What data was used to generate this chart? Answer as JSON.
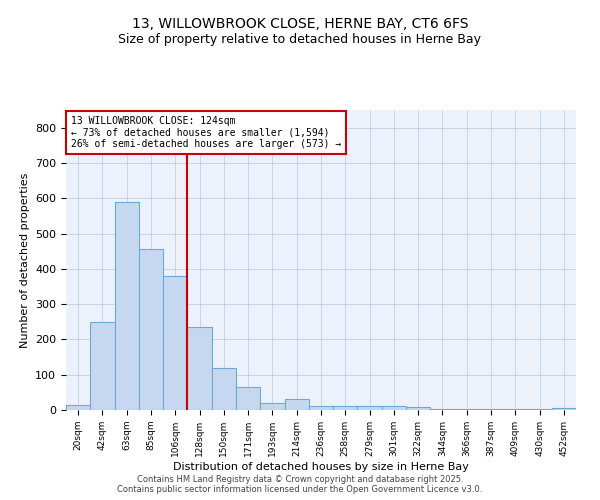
{
  "title1": "13, WILLOWBROOK CLOSE, HERNE BAY, CT6 6FS",
  "title2": "Size of property relative to detached houses in Herne Bay",
  "xlabel": "Distribution of detached houses by size in Herne Bay",
  "ylabel": "Number of detached properties",
  "categories": [
    "20sqm",
    "42sqm",
    "63sqm",
    "85sqm",
    "106sqm",
    "128sqm",
    "150sqm",
    "171sqm",
    "193sqm",
    "214sqm",
    "236sqm",
    "258sqm",
    "279sqm",
    "301sqm",
    "322sqm",
    "344sqm",
    "366sqm",
    "387sqm",
    "409sqm",
    "430sqm",
    "452sqm"
  ],
  "values": [
    15,
    250,
    590,
    455,
    380,
    235,
    120,
    65,
    20,
    30,
    10,
    10,
    10,
    10,
    8,
    3,
    3,
    3,
    3,
    3,
    5
  ],
  "bar_color": "#c5d8f0",
  "bar_edge_color": "#6aaad4",
  "vline_color": "#cc0000",
  "annotation_line1": "13 WILLOWBROOK CLOSE: 124sqm",
  "annotation_line2": "← 73% of detached houses are smaller (1,594)",
  "annotation_line3": "26% of semi-detached houses are larger (573) →",
  "annotation_box_color": "#ffffff",
  "annotation_box_edge": "#cc0000",
  "ylim": [
    0,
    850
  ],
  "yticks": [
    0,
    100,
    200,
    300,
    400,
    500,
    600,
    700,
    800
  ],
  "footnote1": "Contains HM Land Registry data © Crown copyright and database right 2025.",
  "footnote2": "Contains public sector information licensed under the Open Government Licence v3.0.",
  "bg_color": "#edf1fb",
  "fig_bg_color": "#ffffff"
}
